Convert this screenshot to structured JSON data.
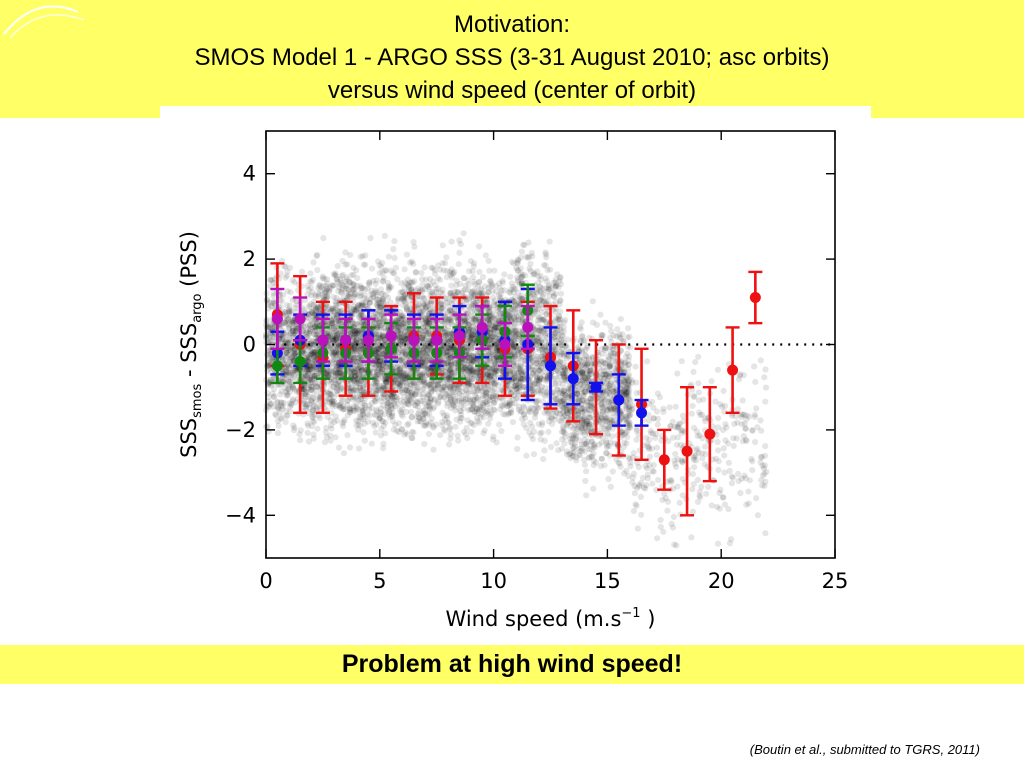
{
  "slide": {
    "title_line1": "Motivation:",
    "title_line2": "SMOS Model 1 - ARGO SSS (3-31 August 2010; asc orbits)",
    "title_line3": "versus wind speed (center of orbit)",
    "banner": "Problem at high wind speed!",
    "citation": "(Boutin et al., submitted to TGRS, 2011)",
    "band_color": "#ffff66"
  },
  "chart_data": {
    "type": "scatter",
    "xlabel_main": "Wind speed (m.s",
    "xlabel_sup": "−1",
    "xlabel_close": " )",
    "ylabel_parts": {
      "sss1": "SSS",
      "sub1": "smos",
      "mid": " - SSS",
      "sub2": "argo",
      "unit": "  (PSS)"
    },
    "xlim": [
      0,
      25
    ],
    "ylim": [
      -5,
      5
    ],
    "xticks": [
      0,
      5,
      10,
      15,
      20,
      25
    ],
    "yticks": [
      -4,
      -2,
      0,
      2,
      4
    ],
    "ytick_labels": [
      "−4",
      "−2",
      "0",
      "2",
      "4"
    ],
    "reference_line": {
      "y": 0,
      "style": "dotted"
    },
    "scatter_cloud": {
      "color": "#000000",
      "description_bins": [
        {
          "x_range": [
            0,
            2
          ],
          "mean": -0.2,
          "spread": 1.1
        },
        {
          "x_range": [
            2,
            11
          ],
          "mean": -0.1,
          "spread": 1.2
        },
        {
          "x_range": [
            11,
            13
          ],
          "mean": 0.0,
          "spread": 1.4
        },
        {
          "x_range": [
            13,
            16
          ],
          "mean": -1.2,
          "spread": 1.1
        },
        {
          "x_range": [
            16,
            22
          ],
          "mean": -2.5,
          "spread": 1.3
        }
      ]
    },
    "series": [
      {
        "name": "",
        "color": "#ee1111",
        "x": [
          0.5,
          1.5,
          2.5,
          3.5,
          4.5,
          5.5,
          6.5,
          7.5,
          8.5,
          9.5,
          10.5,
          11.5,
          12.5,
          13.5,
          14.5,
          15.5,
          16.5,
          17.5,
          18.5,
          19.5,
          20.5,
          21.5
        ],
        "y": [
          0.7,
          0.0,
          -0.3,
          -0.1,
          -0.2,
          -0.1,
          0.2,
          0.2,
          0.1,
          0.1,
          -0.1,
          -0.1,
          -0.3,
          -0.5,
          -1.0,
          -1.3,
          -1.4,
          -2.7,
          -2.5,
          -2.1,
          -0.6,
          1.1
        ],
        "err": [
          1.2,
          1.6,
          1.3,
          1.1,
          1.0,
          1.0,
          1.0,
          0.9,
          1.0,
          1.0,
          1.1,
          1.1,
          1.2,
          1.3,
          1.1,
          1.3,
          1.3,
          0.7,
          1.5,
          1.1,
          1.0,
          0.6
        ]
      },
      {
        "name": "",
        "color": "#1111ee",
        "x": [
          0.5,
          1.5,
          2.5,
          3.5,
          4.5,
          5.5,
          6.5,
          7.5,
          8.5,
          9.5,
          10.5,
          11.5,
          12.5,
          13.5,
          14.5,
          15.5,
          16.5
        ],
        "y": [
          -0.2,
          0.1,
          0.1,
          0.1,
          0.2,
          0.2,
          0.1,
          0.1,
          0.3,
          0.3,
          0.1,
          0.0,
          -0.5,
          -0.8,
          -1.0,
          -1.3,
          -1.6
        ],
        "err": [
          0.5,
          0.6,
          0.6,
          0.6,
          0.6,
          0.6,
          0.6,
          0.6,
          0.6,
          0.6,
          0.9,
          1.3,
          0.9,
          0.6,
          0.1,
          0.6,
          0.3
        ]
      },
      {
        "name": "",
        "color": "#118811",
        "x": [
          0.5,
          1.5,
          2.5,
          3.5,
          4.5,
          5.5,
          6.5,
          7.5,
          8.5,
          9.5,
          10.5,
          11.5
        ],
        "y": [
          -0.5,
          -0.4,
          -0.2,
          -0.2,
          -0.2,
          -0.1,
          -0.2,
          -0.2,
          -0.2,
          0.1,
          0.3,
          0.8
        ],
        "err": [
          0.4,
          0.5,
          0.6,
          0.6,
          0.6,
          0.6,
          0.6,
          0.6,
          0.6,
          0.6,
          0.6,
          0.6
        ]
      },
      {
        "name": "",
        "color": "#bb11bb",
        "x": [
          0.5,
          1.5,
          2.5,
          3.5,
          4.5,
          5.5,
          6.5,
          7.5,
          8.5,
          9.5,
          10.5,
          11.5
        ],
        "y": [
          0.6,
          0.6,
          0.1,
          0.1,
          0.1,
          0.2,
          0.1,
          0.1,
          0.2,
          0.4,
          0.0,
          0.4
        ],
        "err": [
          0.7,
          0.5,
          0.5,
          0.5,
          0.5,
          0.5,
          0.5,
          0.5,
          0.5,
          0.5,
          0.5,
          0.5
        ]
      }
    ]
  }
}
